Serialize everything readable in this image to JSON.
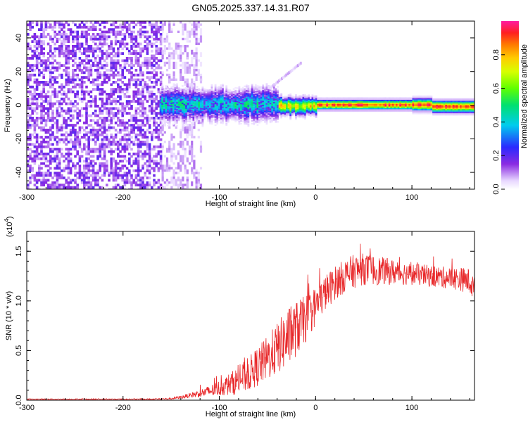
{
  "title": "GN05.2025.337.14.31.R07",
  "colors": {
    "snr_line": "#e8282a",
    "axis": "#000000",
    "spectrogram_noise": "#6a1fd8"
  },
  "chart_data": [
    {
      "type": "heatmap",
      "name": "spectrogram",
      "xlabel": "Height of straight line (km)",
      "ylabel": "Frequency (Hz)",
      "xlim": [
        -300,
        165
      ],
      "ylim": [
        -50,
        50
      ],
      "x_ticks": [
        -300,
        -200,
        -100,
        0,
        100
      ],
      "y_ticks": [
        -40,
        -20,
        0,
        20,
        40
      ],
      "colorbar": {
        "label": "Normalized spectral amplitude",
        "range": [
          0,
          1
        ],
        "ticks": [
          0.0,
          0.2,
          0.4,
          0.6,
          0.8
        ],
        "tick_labels": [
          "0.0",
          "0.2",
          "0.4",
          "0.6",
          "0.8"
        ],
        "colormap": "white-purple-blue-cyan-green-yellow-orange-red-magenta"
      },
      "regions": [
        {
          "from_km": -300,
          "to_km": -160,
          "frequency_range_hz": [
            -50,
            50
          ],
          "amplitude": "0.1-0.25 scattered noise"
        },
        {
          "from_km": -160,
          "to_km": -120,
          "frequency_range_hz": [
            -50,
            50
          ],
          "amplitude": "0.05-0.15 sparse noise"
        },
        {
          "from_km": -160,
          "to_km": -40,
          "frequency_center_hz": 0,
          "band_halfwidth_hz": 6,
          "amplitude": "0.3-0.5"
        },
        {
          "from_km": -40,
          "to_km": 165,
          "frequency_center_hz": 0,
          "band_halfwidth_hz": 2.5,
          "amplitude": "0.6-1.0"
        }
      ]
    },
    {
      "type": "line",
      "name": "snr",
      "xlabel": "Height of straight line (km)",
      "ylabel": "SNR (10 * v/v)",
      "y_scale_label": "(x10",
      "y_scale_exponent": "4",
      "xlim": [
        -300,
        165
      ],
      "ylim": [
        0,
        1.7
      ],
      "x_ticks": [
        -300,
        -200,
        -100,
        0,
        100
      ],
      "y_ticks": [
        0.0,
        0.5,
        1.0,
        1.5
      ],
      "y_tick_labels": [
        "0.0",
        "0.5",
        "1.0",
        "1.5"
      ],
      "series": [
        {
          "name": "SNR",
          "x": [
            -300,
            -250,
            -200,
            -170,
            -150,
            -140,
            -130,
            -120,
            -110,
            -100,
            -90,
            -80,
            -70,
            -60,
            -50,
            -40,
            -30,
            -20,
            -10,
            0,
            10,
            20,
            30,
            40,
            50,
            60,
            70,
            80,
            90,
            100,
            110,
            120,
            130,
            140,
            150,
            160,
            165
          ],
          "values": [
            0.01,
            0.01,
            0.01,
            0.01,
            0.015,
            0.03,
            0.05,
            0.07,
            0.09,
            0.12,
            0.16,
            0.2,
            0.26,
            0.34,
            0.42,
            0.52,
            0.62,
            0.72,
            0.82,
            0.95,
            1.08,
            1.18,
            1.25,
            1.3,
            1.32,
            1.31,
            1.3,
            1.29,
            1.28,
            1.27,
            1.26,
            1.25,
            1.24,
            1.23,
            1.22,
            1.2,
            1.1
          ],
          "noise_amplitude": [
            0.005,
            0.005,
            0.005,
            0.006,
            0.008,
            0.015,
            0.025,
            0.04,
            0.06,
            0.08,
            0.11,
            0.14,
            0.17,
            0.2,
            0.23,
            0.26,
            0.3,
            0.28,
            0.24,
            0.2,
            0.18,
            0.17,
            0.17,
            0.17,
            0.16,
            0.15,
            0.14,
            0.13,
            0.12,
            0.11,
            0.11,
            0.11,
            0.11,
            0.11,
            0.12,
            0.13,
            0.14
          ]
        }
      ]
    }
  ]
}
